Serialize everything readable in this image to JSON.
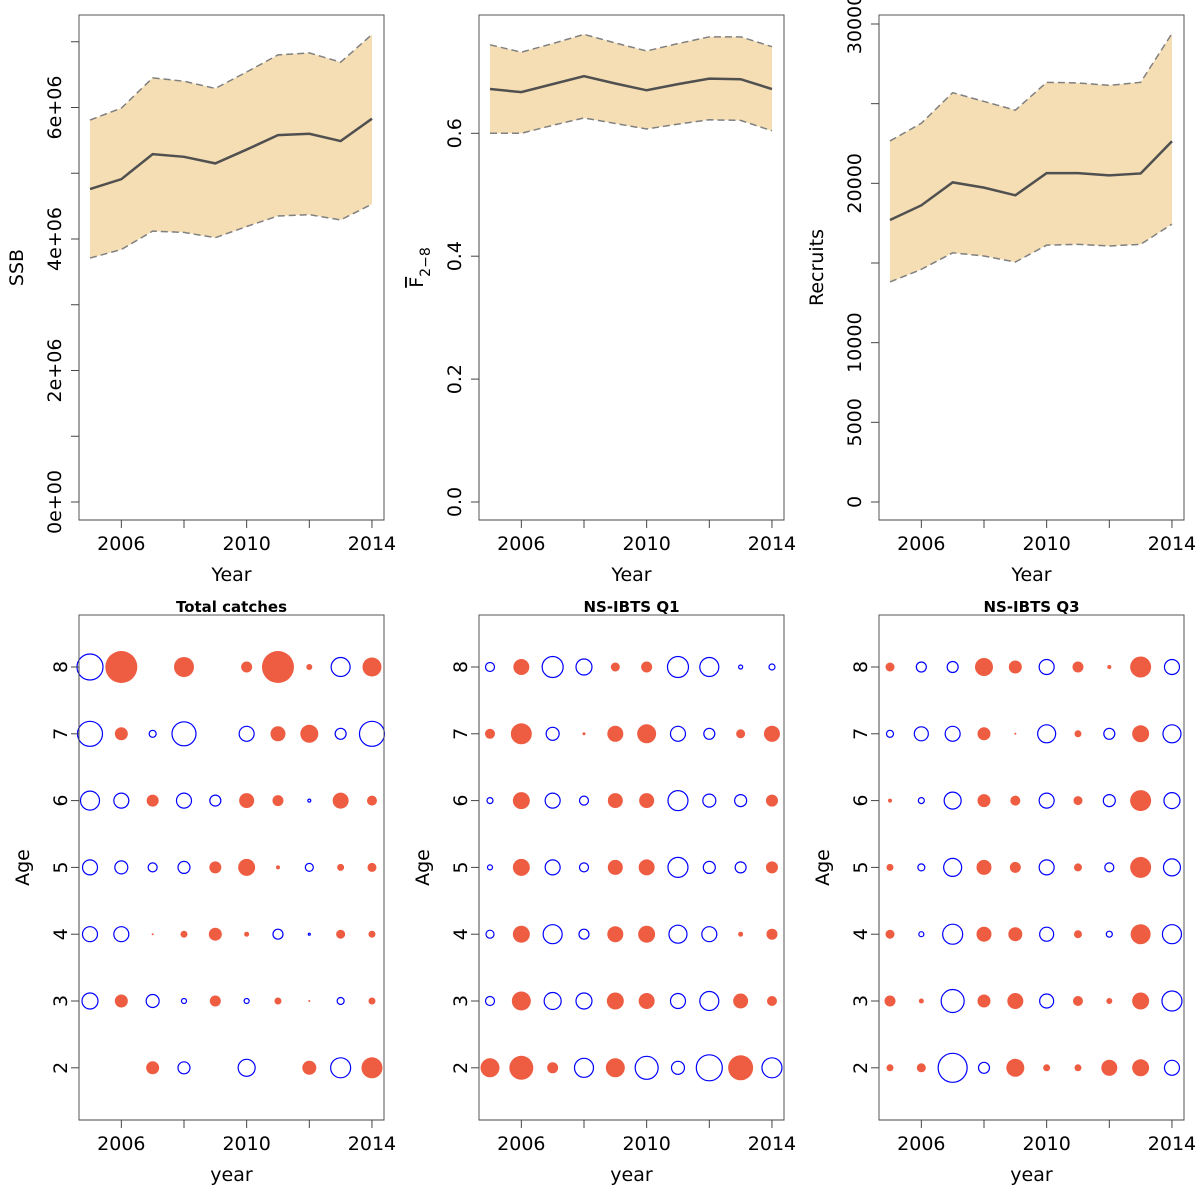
{
  "chart_data": [
    {
      "type": "area",
      "id": "ssb",
      "title": "",
      "xlabel": "Year",
      "ylabel": "SSB",
      "x": [
        2005,
        2006,
        2007,
        2008,
        2009,
        2010,
        2011,
        2012,
        2013,
        2014
      ],
      "x_ticks": [
        2006,
        2008,
        2010,
        2012,
        2014
      ],
      "x_tick_labels": [
        "2006",
        "",
        "2010",
        "",
        "2014"
      ],
      "y_ticks": [
        0,
        1000000,
        2000000,
        3000000,
        4000000,
        5000000,
        6000000,
        7000000
      ],
      "y_tick_labels": [
        "0e+00",
        "",
        "2e+06",
        "",
        "4e+06",
        "",
        "6e+06",
        ""
      ],
      "ylim": [
        0,
        7600000
      ],
      "series": [
        {
          "name": "estimate",
          "values": [
            4760000,
            4910000,
            5290000,
            5250000,
            5150000,
            5360000,
            5580000,
            5600000,
            5490000,
            5830000
          ]
        },
        {
          "name": "upper",
          "values": [
            5810000,
            5990000,
            6450000,
            6400000,
            6290000,
            6540000,
            6800000,
            6830000,
            6690000,
            7110000
          ]
        },
        {
          "name": "lower",
          "values": [
            3710000,
            3840000,
            4120000,
            4100000,
            4020000,
            4190000,
            4350000,
            4370000,
            4290000,
            4530000
          ]
        }
      ],
      "colors": {
        "band": "#f5deb3",
        "line": "#505050",
        "ci": "#808080"
      }
    },
    {
      "type": "area",
      "id": "fbar",
      "title": "",
      "xlabel": "Year",
      "ylabel": "F",
      "ylabel_sub": "2−8",
      "x": [
        2005,
        2006,
        2007,
        2008,
        2009,
        2010,
        2011,
        2012,
        2013,
        2014
      ],
      "x_ticks": [
        2006,
        2008,
        2010,
        2012,
        2014
      ],
      "x_tick_labels": [
        "2006",
        "",
        "2010",
        "",
        "2014"
      ],
      "y_ticks": [
        0,
        0.2,
        0.4,
        0.6
      ],
      "y_tick_labels": [
        "0.0",
        "0.2",
        "0.4",
        "0.6"
      ],
      "ylim": [
        0,
        0.78
      ],
      "series": [
        {
          "name": "estimate",
          "values": [
            0.672,
            0.667,
            0.68,
            0.693,
            0.681,
            0.67,
            0.68,
            0.689,
            0.688,
            0.672
          ]
        },
        {
          "name": "upper",
          "values": [
            0.744,
            0.732,
            0.746,
            0.761,
            0.747,
            0.734,
            0.746,
            0.757,
            0.757,
            0.741
          ]
        },
        {
          "name": "lower",
          "values": [
            0.6,
            0.6,
            0.613,
            0.625,
            0.616,
            0.607,
            0.615,
            0.622,
            0.621,
            0.604
          ]
        }
      ],
      "colors": {
        "band": "#f5deb3",
        "line": "#505050",
        "ci": "#808080"
      }
    },
    {
      "type": "area",
      "id": "recruits",
      "title": "",
      "xlabel": "Year",
      "ylabel": "Recruits",
      "x": [
        2005,
        2006,
        2007,
        2008,
        2009,
        2010,
        2011,
        2012,
        2013,
        2014
      ],
      "x_ticks": [
        2006,
        2008,
        2010,
        2012,
        2014
      ],
      "x_tick_labels": [
        "2006",
        "",
        "2010",
        "",
        "2014"
      ],
      "y_ticks": [
        0,
        5000,
        10000,
        15000,
        20000,
        25000,
        30000
      ],
      "y_tick_labels": [
        "0",
        "5000",
        "10000",
        "",
        "20000",
        "",
        "30000"
      ],
      "ylim": [
        0,
        31700
      ],
      "series": [
        {
          "name": "estimate",
          "values": [
            17700,
            18620,
            20060,
            19730,
            19250,
            20640,
            20640,
            20500,
            20620,
            22640
          ]
        },
        {
          "name": "upper",
          "values": [
            22660,
            23770,
            25690,
            25140,
            24590,
            26340,
            26300,
            26150,
            26340,
            29400
          ]
        },
        {
          "name": "lower",
          "values": [
            13810,
            14600,
            15640,
            15440,
            15060,
            16120,
            16170,
            16070,
            16170,
            17440
          ]
        }
      ],
      "colors": {
        "band": "#f5deb3",
        "line": "#505050",
        "ci": "#808080"
      }
    },
    {
      "type": "scatter",
      "subtype": "bubble",
      "id": "total-catches",
      "title": "Total catches",
      "xlabel": "year",
      "ylabel": "Age",
      "x": [
        2005,
        2006,
        2007,
        2008,
        2009,
        2010,
        2011,
        2012,
        2013,
        2014
      ],
      "x_ticks": [
        2006,
        2008,
        2010,
        2012,
        2014
      ],
      "x_tick_labels": [
        "2006",
        "",
        "2010",
        "",
        "2014"
      ],
      "ages": [
        2,
        3,
        4,
        5,
        6,
        7,
        8
      ],
      "y_tick_labels": [
        "2",
        "3",
        "4",
        "5",
        "6",
        "7",
        "8"
      ],
      "legend_note": "positive residual = open blue circle, negative residual = filled red circle",
      "colors": {
        "positive": "#0000ff",
        "negative": "#ee5c42"
      },
      "residuals": {
        "8": [
          2.6,
          -3.2,
          null,
          -2.0,
          null,
          -1.1,
          -3.2,
          -0.6,
          1.9,
          -1.9
        ],
        "7": [
          2.5,
          -1.3,
          0.7,
          2.4,
          null,
          1.5,
          -1.5,
          -1.8,
          1.1,
          2.5
        ],
        "6": [
          1.9,
          1.5,
          -1.2,
          1.5,
          1.1,
          -1.5,
          -1.1,
          0.3,
          -1.6,
          -1.0
        ],
        "5": [
          1.5,
          1.3,
          0.9,
          1.2,
          -1.2,
          -1.7,
          -0.4,
          0.8,
          -0.7,
          -0.9
        ],
        "4": [
          1.5,
          1.5,
          -0.2,
          -0.7,
          -1.3,
          -0.5,
          1.0,
          0.2,
          -0.9,
          -0.7
        ],
        "3": [
          1.6,
          -1.3,
          1.3,
          0.5,
          -1.1,
          0.5,
          -0.7,
          -0.2,
          0.7,
          -0.7
        ],
        "2": [
          null,
          null,
          -1.3,
          1.2,
          null,
          1.7,
          null,
          -1.4,
          2.0,
          -2.1
        ]
      }
    },
    {
      "type": "scatter",
      "subtype": "bubble",
      "id": "ns-ibts-q1",
      "title": "NS-IBTS Q1",
      "xlabel": "year",
      "ylabel": "Age",
      "x": [
        2005,
        2006,
        2007,
        2008,
        2009,
        2010,
        2011,
        2012,
        2013,
        2014
      ],
      "x_ticks": [
        2006,
        2008,
        2010,
        2012,
        2014
      ],
      "x_tick_labels": [
        "2006",
        "",
        "2010",
        "",
        "2014"
      ],
      "ages": [
        2,
        3,
        4,
        5,
        6,
        7,
        8
      ],
      "y_tick_labels": [
        "2",
        "3",
        "4",
        "5",
        "6",
        "7",
        "8"
      ],
      "colors": {
        "positive": "#0000ff",
        "negative": "#ee5c42"
      },
      "residuals": {
        "8": [
          0.9,
          -1.6,
          2.1,
          1.6,
          -0.9,
          -1.1,
          2.1,
          1.9,
          0.4,
          0.6
        ],
        "7": [
          -1.0,
          -2.1,
          1.3,
          -0.3,
          -1.6,
          -1.9,
          1.5,
          1.1,
          -0.9,
          -1.6
        ],
        "6": [
          0.6,
          -1.7,
          1.5,
          0.9,
          -1.5,
          -1.5,
          2.0,
          1.3,
          1.2,
          -1.2
        ],
        "5": [
          0.5,
          -1.7,
          1.5,
          0.9,
          -1.5,
          -1.6,
          2.0,
          1.2,
          1.1,
          -1.2
        ],
        "4": [
          0.8,
          -1.7,
          1.9,
          1.0,
          -1.6,
          -1.7,
          1.8,
          1.5,
          -0.5,
          -1.1
        ],
        "3": [
          0.9,
          -1.9,
          1.7,
          1.6,
          -1.7,
          -1.6,
          1.5,
          1.9,
          -1.5,
          -1.0
        ],
        "2": [
          -1.9,
          -2.4,
          -1.1,
          1.9,
          -1.9,
          2.3,
          1.3,
          2.6,
          -2.5,
          2.0
        ]
      }
    },
    {
      "type": "scatter",
      "subtype": "bubble",
      "id": "ns-ibts-q3",
      "title": "NS-IBTS Q3",
      "xlabel": "year",
      "ylabel": "Age",
      "x": [
        2005,
        2006,
        2007,
        2008,
        2009,
        2010,
        2011,
        2012,
        2013,
        2014
      ],
      "x_ticks": [
        2006,
        2008,
        2010,
        2012,
        2014
      ],
      "x_tick_labels": [
        "2006",
        "",
        "2010",
        "",
        "2014"
      ],
      "ages": [
        2,
        3,
        4,
        5,
        6,
        7,
        8
      ],
      "y_tick_labels": [
        "2",
        "3",
        "4",
        "5",
        "6",
        "7",
        "8"
      ],
      "colors": {
        "positive": "#0000ff",
        "negative": "#ee5c42"
      },
      "residuals": {
        "8": [
          -0.9,
          1.0,
          1.1,
          -1.8,
          -1.3,
          1.5,
          -1.1,
          -0.4,
          -2.1,
          1.5
        ],
        "7": [
          0.7,
          1.4,
          1.5,
          -1.3,
          -0.2,
          1.8,
          -0.7,
          1.1,
          -1.7,
          1.8
        ],
        "6": [
          -0.4,
          0.6,
          1.7,
          -1.3,
          -1.0,
          1.5,
          -0.9,
          1.2,
          -2.1,
          1.6
        ],
        "5": [
          -0.7,
          0.7,
          1.8,
          -1.5,
          -1.1,
          1.5,
          -0.8,
          0.9,
          -2.1,
          1.7
        ],
        "4": [
          -0.9,
          0.5,
          2.0,
          -1.5,
          -1.4,
          1.4,
          -0.8,
          0.6,
          -2.0,
          1.9
        ],
        "3": [
          -1.1,
          -0.5,
          2.3,
          -1.3,
          -1.6,
          1.4,
          -1.0,
          -0.6,
          -1.7,
          2.0
        ],
        "2": [
          -0.7,
          -0.9,
          2.9,
          1.1,
          -1.8,
          -0.7,
          -0.7,
          -1.6,
          -1.7,
          1.5
        ]
      }
    }
  ]
}
